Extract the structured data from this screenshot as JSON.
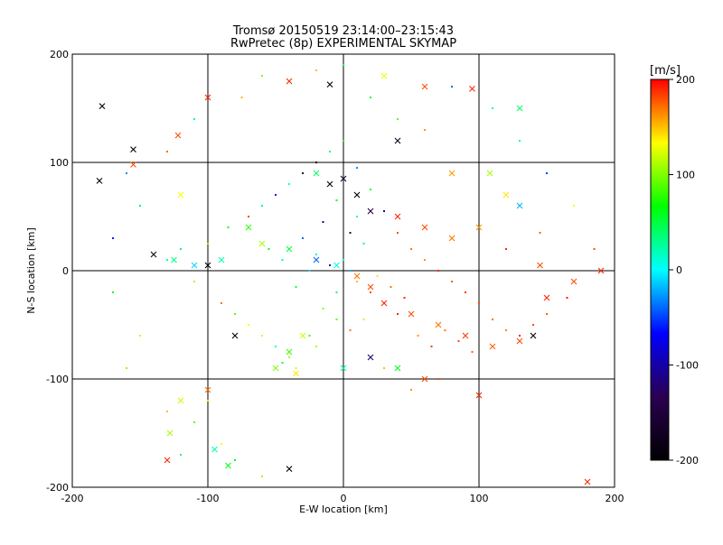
{
  "title": {
    "line1": "Tromsø 20150519 23:14:00–23:15:43",
    "line2": "RwPretec (8p) EXPERIMENTAL SKYMAP"
  },
  "chart_data": {
    "type": "scatter",
    "xlabel": "E-W location [km]",
    "ylabel": "N-S location [km]",
    "xlim": [
      -200,
      200
    ],
    "ylim": [
      -200,
      200
    ],
    "xticks": [
      -200,
      -100,
      0,
      100,
      200
    ],
    "yticks": [
      -200,
      -100,
      0,
      100,
      200
    ],
    "xtick_labels": [
      "-200",
      "-100",
      "0",
      "100",
      "200"
    ],
    "ytick_labels": [
      "-200",
      "-100",
      "0",
      "100",
      "200"
    ],
    "grid": true,
    "colorbar": {
      "unit": "[m/s]",
      "range": [
        -200,
        200
      ],
      "ticks": [
        200,
        100,
        0,
        -100,
        -200
      ],
      "tick_labels": [
        "200",
        "100",
        "0",
        "-100",
        "-200"
      ],
      "colormap": "rainbow",
      "stops": [
        "#000000",
        "#2a0050",
        "#0000ff",
        "#00ffff",
        "#00ff00",
        "#ffff00",
        "#ff0000"
      ]
    },
    "markers": [
      "dot",
      "cross"
    ],
    "series": [
      {
        "points": [
          [
            -45,
            10,
            30,
            "dot"
          ],
          [
            -55,
            20,
            60,
            "dot"
          ],
          [
            -30,
            30,
            -40,
            "dot"
          ],
          [
            -20,
            15,
            20,
            "dot"
          ],
          [
            -10,
            5,
            -80,
            "dot"
          ],
          [
            0,
            10,
            10,
            "dot"
          ],
          [
            5,
            0,
            -20,
            "dot"
          ],
          [
            10,
            -10,
            150,
            "dot"
          ],
          [
            20,
            -20,
            180,
            "dot"
          ],
          [
            30,
            -30,
            160,
            "dot"
          ],
          [
            40,
            -40,
            190,
            "dot"
          ],
          [
            -5,
            -20,
            40,
            "dot"
          ],
          [
            -15,
            -35,
            100,
            "dot"
          ],
          [
            -25,
            -60,
            80,
            "dot"
          ],
          [
            -40,
            -80,
            110,
            "dot"
          ],
          [
            -45,
            -85,
            50,
            "dot"
          ],
          [
            -35,
            -90,
            120,
            "dot"
          ],
          [
            -50,
            -70,
            20,
            "dot"
          ],
          [
            -60,
            -60,
            140,
            "dot"
          ],
          [
            -70,
            -50,
            130,
            "dot"
          ],
          [
            -80,
            -40,
            90,
            "dot"
          ],
          [
            -90,
            -30,
            170,
            "dot"
          ],
          [
            -110,
            -10,
            110,
            "dot"
          ],
          [
            -130,
            10,
            20,
            "dot"
          ],
          [
            -140,
            15,
            -10,
            "dot"
          ],
          [
            -120,
            20,
            40,
            "dot"
          ],
          [
            -100,
            25,
            150,
            "dot"
          ],
          [
            -85,
            40,
            60,
            "dot"
          ],
          [
            -70,
            50,
            180,
            "dot"
          ],
          [
            -60,
            60,
            30,
            "dot"
          ],
          [
            -50,
            70,
            -60,
            "dot"
          ],
          [
            -40,
            80,
            10,
            "dot"
          ],
          [
            -30,
            90,
            -150,
            "dot"
          ],
          [
            -20,
            100,
            -190,
            "dot"
          ],
          [
            -10,
            110,
            40,
            "dot"
          ],
          [
            0,
            120,
            80,
            "dot"
          ],
          [
            10,
            95,
            -30,
            "dot"
          ],
          [
            20,
            75,
            70,
            "dot"
          ],
          [
            30,
            55,
            -100,
            "dot"
          ],
          [
            40,
            35,
            180,
            "dot"
          ],
          [
            50,
            20,
            170,
            "dot"
          ],
          [
            60,
            10,
            160,
            "dot"
          ],
          [
            70,
            0,
            190,
            "dot"
          ],
          [
            80,
            -10,
            175,
            "dot"
          ],
          [
            90,
            -20,
            185,
            "dot"
          ],
          [
            100,
            -30,
            180,
            "dot"
          ],
          [
            110,
            -45,
            170,
            "dot"
          ],
          [
            120,
            -55,
            165,
            "dot"
          ],
          [
            130,
            -60,
            190,
            "dot"
          ],
          [
            140,
            -50,
            180,
            "dot"
          ],
          [
            150,
            -40,
            175,
            "dot"
          ],
          [
            165,
            -25,
            195,
            "dot"
          ],
          [
            55,
            -60,
            160,
            "dot"
          ],
          [
            65,
            -70,
            185,
            "dot"
          ],
          [
            75,
            -55,
            170,
            "dot"
          ],
          [
            85,
            -65,
            180,
            "dot"
          ],
          [
            95,
            -75,
            175,
            "dot"
          ],
          [
            -75,
            160,
            150,
            "dot"
          ],
          [
            -110,
            140,
            30,
            "dot"
          ],
          [
            -130,
            110,
            170,
            "dot"
          ],
          [
            -160,
            90,
            -30,
            "dot"
          ],
          [
            -150,
            60,
            40,
            "dot"
          ],
          [
            -170,
            30,
            -60,
            "dot"
          ],
          [
            -100,
            -120,
            120,
            "dot"
          ],
          [
            -110,
            -140,
            90,
            "dot"
          ],
          [
            -90,
            -160,
            130,
            "dot"
          ],
          [
            -80,
            -175,
            70,
            "dot"
          ],
          [
            -60,
            -190,
            110,
            "dot"
          ],
          [
            -120,
            -170,
            40,
            "dot"
          ],
          [
            -130,
            -130,
            150,
            "dot"
          ],
          [
            20,
            160,
            60,
            "dot"
          ],
          [
            40,
            140,
            90,
            "dot"
          ],
          [
            60,
            130,
            160,
            "dot"
          ],
          [
            80,
            170,
            -40,
            "dot"
          ],
          [
            110,
            150,
            30,
            "dot"
          ],
          [
            130,
            120,
            20,
            "dot"
          ],
          [
            150,
            90,
            -50,
            "dot"
          ],
          [
            170,
            60,
            130,
            "dot"
          ],
          [
            185,
            20,
            180,
            "dot"
          ],
          [
            -20,
            185,
            150,
            "dot"
          ],
          [
            0,
            190,
            40,
            "dot"
          ],
          [
            -60,
            180,
            100,
            "dot"
          ],
          [
            10,
            50,
            20,
            "dot"
          ],
          [
            -15,
            45,
            -120,
            "dot"
          ],
          [
            -5,
            65,
            60,
            "dot"
          ],
          [
            5,
            35,
            -140,
            "dot"
          ],
          [
            15,
            25,
            30,
            "dot"
          ],
          [
            -25,
            0,
            -10,
            "dot"
          ],
          [
            -35,
            -15,
            50,
            "dot"
          ],
          [
            25,
            -5,
            140,
            "dot"
          ],
          [
            35,
            -15,
            170,
            "dot"
          ],
          [
            45,
            -25,
            190,
            "dot"
          ],
          [
            15,
            -45,
            120,
            "dot"
          ],
          [
            5,
            -55,
            170,
            "dot"
          ],
          [
            -5,
            -45,
            90,
            "dot"
          ],
          [
            -20,
            -70,
            110,
            "dot"
          ],
          [
            30,
            -90,
            150,
            "dot"
          ],
          [
            50,
            -110,
            160,
            "dot"
          ],
          [
            70,
            -100,
            180,
            "dot"
          ],
          [
            -150,
            -60,
            120,
            "dot"
          ],
          [
            -170,
            -20,
            70,
            "dot"
          ],
          [
            -160,
            -90,
            100,
            "dot"
          ],
          [
            145,
            35,
            175,
            "dot"
          ],
          [
            120,
            20,
            190,
            "dot"
          ],
          [
            -178,
            152,
            -200,
            "cross"
          ],
          [
            -155,
            112,
            -200,
            "cross"
          ],
          [
            -122,
            125,
            180,
            "cross"
          ],
          [
            -120,
            70,
            130,
            "cross"
          ],
          [
            -100,
            160,
            190,
            "cross"
          ],
          [
            -40,
            175,
            190,
            "cross"
          ],
          [
            -10,
            172,
            -200,
            "cross"
          ],
          [
            30,
            180,
            130,
            "cross"
          ],
          [
            60,
            170,
            180,
            "cross"
          ],
          [
            95,
            168,
            190,
            "cross"
          ],
          [
            130,
            150,
            40,
            "cross"
          ],
          [
            -20,
            90,
            40,
            "cross"
          ],
          [
            -10,
            80,
            -190,
            "cross"
          ],
          [
            0,
            85,
            -170,
            "cross"
          ],
          [
            10,
            70,
            -200,
            "cross"
          ],
          [
            20,
            55,
            -150,
            "cross"
          ],
          [
            40,
            50,
            190,
            "cross"
          ],
          [
            60,
            40,
            180,
            "cross"
          ],
          [
            80,
            30,
            170,
            "cross"
          ],
          [
            100,
            40,
            160,
            "cross"
          ],
          [
            -70,
            40,
            80,
            "cross"
          ],
          [
            -90,
            10,
            20,
            "cross"
          ],
          [
            -110,
            5,
            -10,
            "cross"
          ],
          [
            -125,
            10,
            30,
            "cross"
          ],
          [
            -140,
            15,
            -180,
            "cross"
          ],
          [
            -100,
            5,
            -190,
            "cross"
          ],
          [
            -60,
            25,
            110,
            "cross"
          ],
          [
            -40,
            20,
            50,
            "cross"
          ],
          [
            -20,
            10,
            -40,
            "cross"
          ],
          [
            -5,
            5,
            10,
            "cross"
          ],
          [
            10,
            -5,
            170,
            "cross"
          ],
          [
            20,
            -15,
            180,
            "cross"
          ],
          [
            30,
            -30,
            190,
            "cross"
          ],
          [
            50,
            -40,
            180,
            "cross"
          ],
          [
            70,
            -50,
            170,
            "cross"
          ],
          [
            90,
            -60,
            185,
            "cross"
          ],
          [
            110,
            -70,
            175,
            "cross"
          ],
          [
            130,
            -65,
            180,
            "cross"
          ],
          [
            140,
            -60,
            -200,
            "cross"
          ],
          [
            150,
            -25,
            190,
            "cross"
          ],
          [
            170,
            -10,
            180,
            "cross"
          ],
          [
            190,
            0,
            190,
            "cross"
          ],
          [
            -30,
            -60,
            120,
            "cross"
          ],
          [
            -40,
            -75,
            80,
            "cross"
          ],
          [
            -50,
            -90,
            100,
            "cross"
          ],
          [
            -35,
            -95,
            140,
            "cross"
          ],
          [
            0,
            -90,
            30,
            "cross"
          ],
          [
            20,
            -80,
            -120,
            "cross"
          ],
          [
            40,
            -90,
            60,
            "cross"
          ],
          [
            60,
            -100,
            180,
            "cross"
          ],
          [
            100,
            -115,
            190,
            "cross"
          ],
          [
            -80,
            -60,
            -190,
            "cross"
          ],
          [
            -100,
            -110,
            170,
            "cross"
          ],
          [
            -120,
            -120,
            120,
            "cross"
          ],
          [
            -128,
            -150,
            110,
            "cross"
          ],
          [
            -130,
            -175,
            190,
            "cross"
          ],
          [
            -95,
            -165,
            20,
            "cross"
          ],
          [
            -85,
            -180,
            60,
            "cross"
          ],
          [
            -40,
            -183,
            -200,
            "cross"
          ],
          [
            180,
            -195,
            190,
            "cross"
          ],
          [
            -180,
            83,
            -200,
            "cross"
          ],
          [
            -155,
            98,
            180,
            "cross"
          ],
          [
            40,
            120,
            -180,
            "cross"
          ],
          [
            80,
            90,
            160,
            "cross"
          ],
          [
            120,
            70,
            140,
            "cross"
          ],
          [
            108,
            90,
            110,
            "cross"
          ],
          [
            130,
            60,
            -20,
            "cross"
          ],
          [
            145,
            5,
            180,
            "cross"
          ]
        ]
      }
    ]
  }
}
